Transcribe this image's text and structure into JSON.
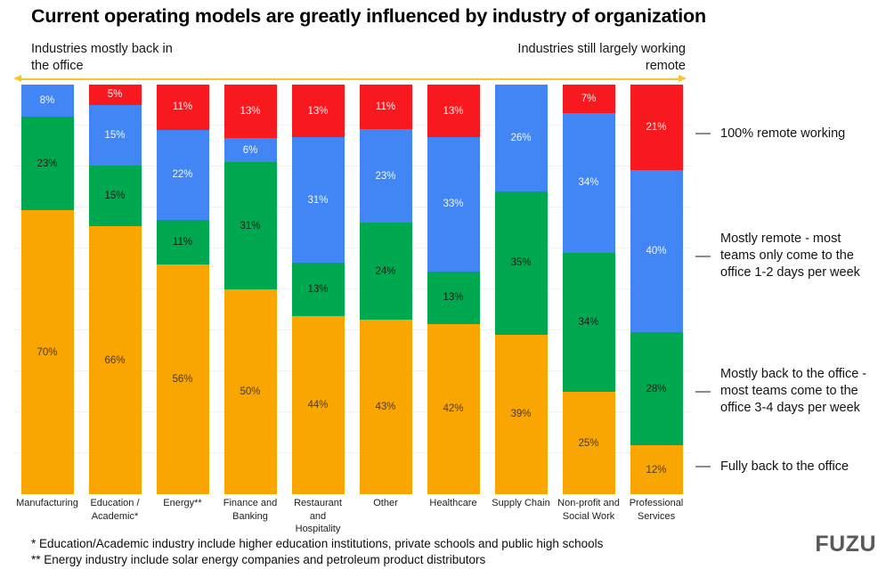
{
  "title": "Current operating models are greatly influenced by industry of organization",
  "annotations": {
    "left": "Industries mostly back in\nthe office",
    "right": "Industries still largely working\nremote"
  },
  "chart_data": {
    "type": "bar",
    "stacked": true,
    "stacked_unit": "percent",
    "title": "Current operating models are greatly influenced by industry of organization",
    "xlabel": "",
    "ylabel": "",
    "ylim": [
      0,
      100
    ],
    "grid": true,
    "gridline_interval_pct": 10,
    "categories": [
      "Manufacturing",
      "Education /\nAcademic*",
      "Energy**",
      "Finance and\nBanking",
      "Restaurant\nand\nHospitality",
      "Other",
      "Healthcare",
      "Supply Chain",
      "Non-profit and\nSocial Work",
      "Professional\nServices"
    ],
    "series": [
      {
        "name": "Fully back to the office",
        "color": "#F9A602",
        "label_color": "#473d2a",
        "values": [
          70,
          66,
          56,
          50,
          44,
          43,
          42,
          39,
          25,
          12
        ]
      },
      {
        "name": "Mostly back to the office - most teams come to the office 3-4 days per week",
        "color": "#00A94F",
        "label_color": "#14161a",
        "values": [
          23,
          15,
          11,
          31,
          13,
          24,
          13,
          35,
          34,
          28
        ]
      },
      {
        "name": "Mostly remote - most teams only come to the office 1-2 days per week",
        "color": "#4285F4",
        "label_color": "#f4f8ff",
        "values": [
          8,
          15,
          22,
          6,
          31,
          23,
          33,
          26,
          34,
          40
        ]
      },
      {
        "name": "100% remote working",
        "color": "#F8191E",
        "label_color": "#ffefef",
        "values": [
          0,
          5,
          11,
          13,
          13,
          11,
          13,
          0,
          7,
          21
        ]
      }
    ],
    "value_suffix": "%"
  },
  "legend": {
    "items": [
      {
        "label": "100% remote working",
        "color": "#F8191E"
      },
      {
        "label": "Mostly remote - most teams only come to the office 1-2 days per week",
        "color": "#4285F4"
      },
      {
        "label": "Mostly back to the office - most teams come to the office 3-4 days per week",
        "color": "#00A94F"
      },
      {
        "label": "Fully back to the office",
        "color": "#F9A602"
      }
    ]
  },
  "footnotes": [
    "* Education/Academic industry include higher education institutions, private schools and public high schools",
    "** Energy industry include solar energy companies and petroleum product distributors"
  ],
  "logo": {
    "text": "FUZU",
    "color": "#58595B"
  },
  "colors": {
    "arrow": "#FBC32C",
    "gridline": "#efefef",
    "legend_dash": "#8b8b8b"
  }
}
